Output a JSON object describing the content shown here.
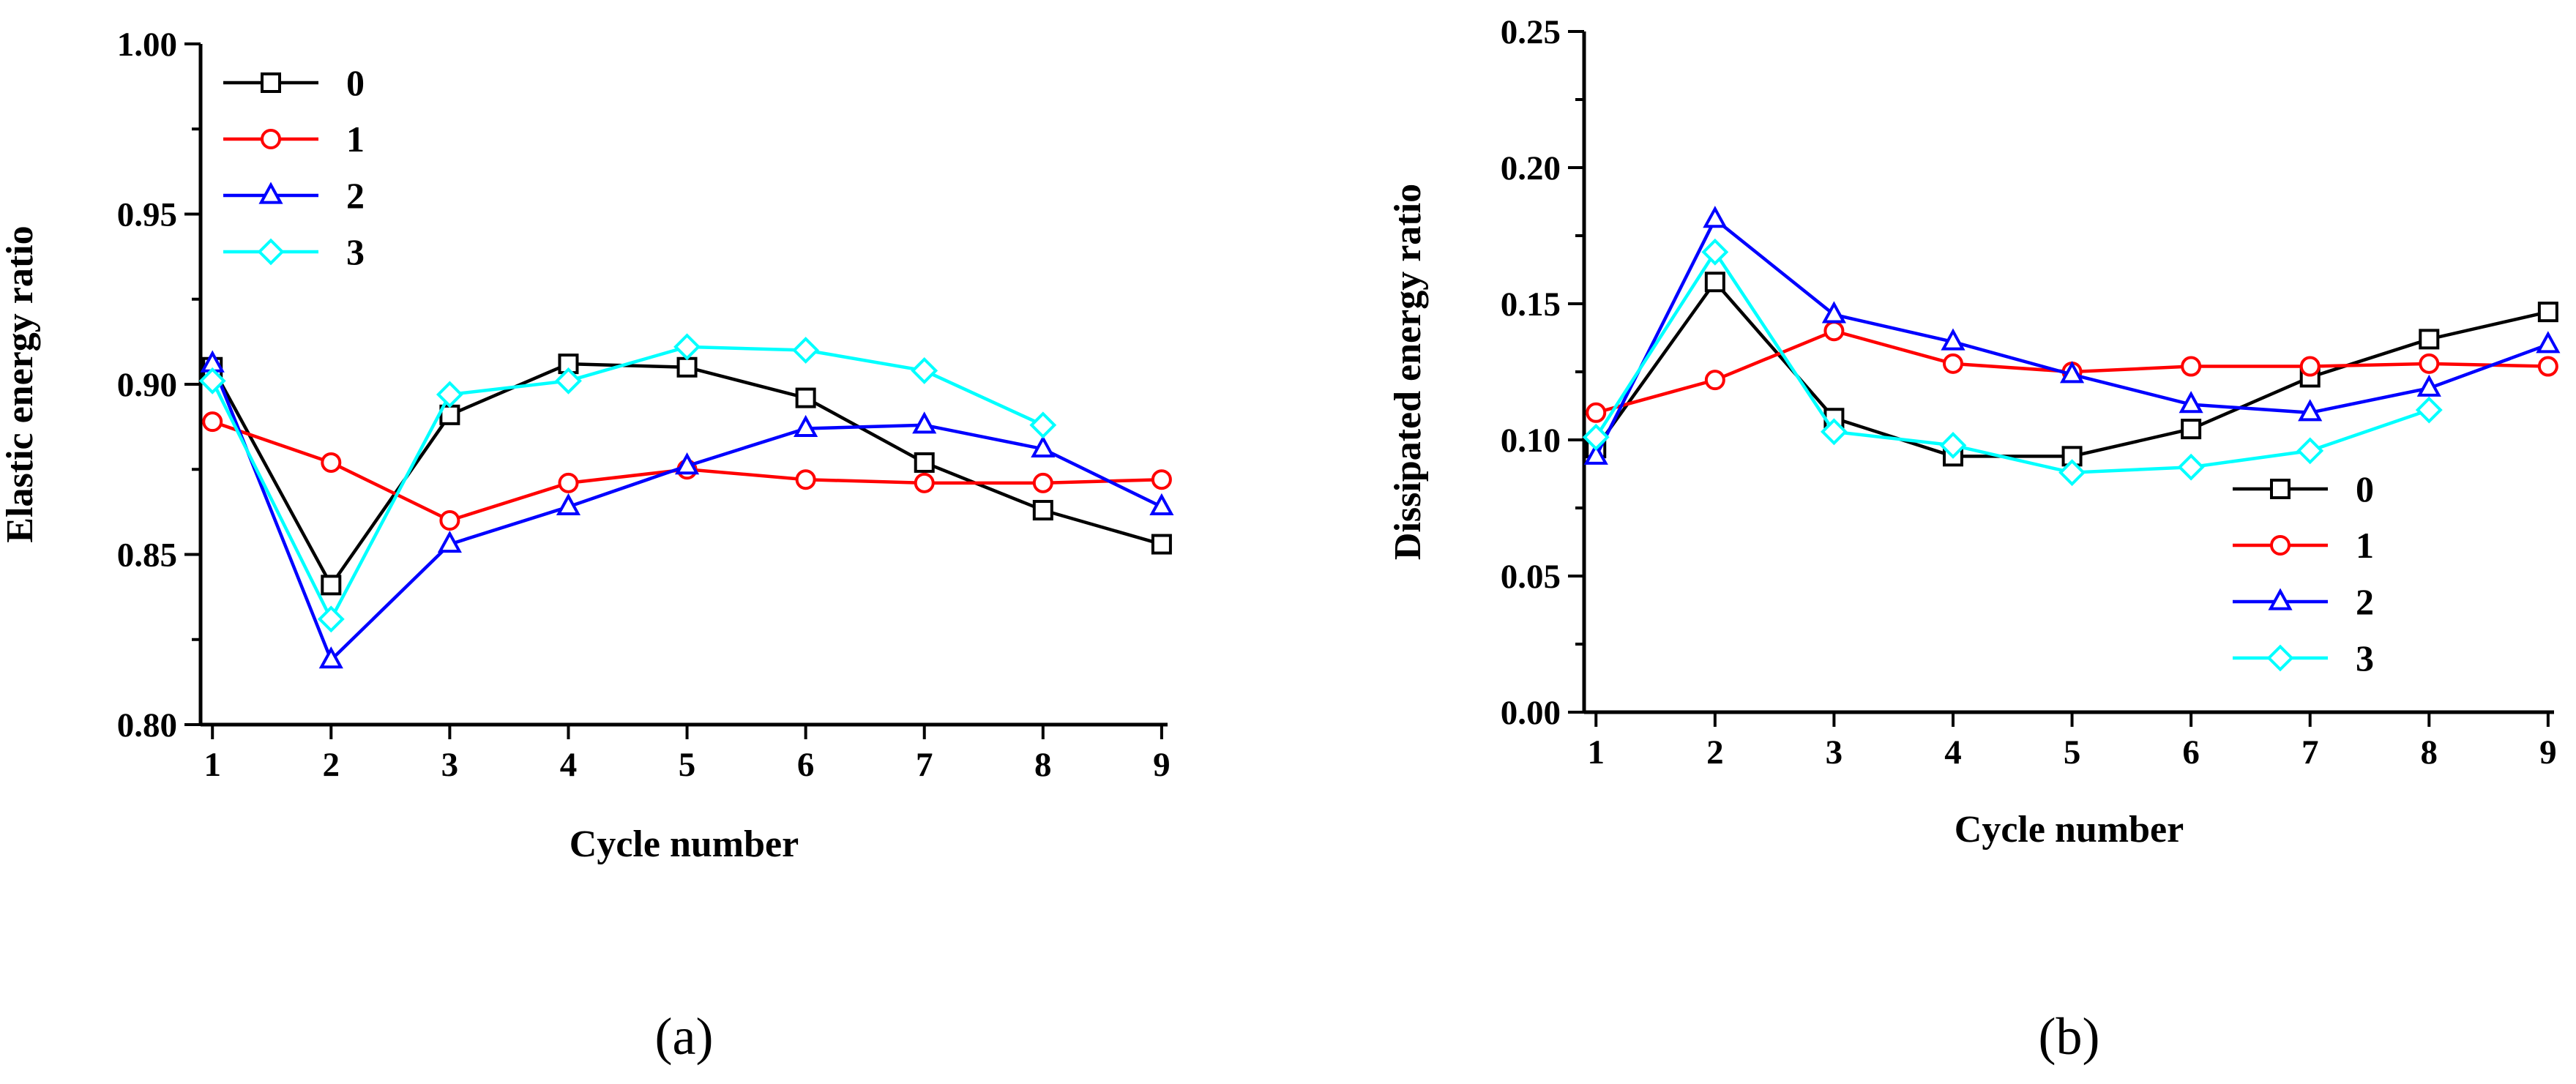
{
  "chart_data": [
    {
      "type": "line",
      "panel_label": "(a)",
      "xlabel": "Cycle number",
      "ylabel": "Elastic energy ratio",
      "x": [
        1,
        2,
        3,
        4,
        5,
        6,
        7,
        8,
        9
      ],
      "xlim": [
        0.9,
        9.05
      ],
      "ylim": [
        0.8,
        1.0
      ],
      "yticks": [
        "0.80",
        "0.85",
        "0.90",
        "0.95",
        "1.00"
      ],
      "xticks": [
        "1",
        "2",
        "3",
        "4",
        "5",
        "6",
        "7",
        "8",
        "9"
      ],
      "legend_position": "top-left",
      "series": [
        {
          "name": "0",
          "color": "#000000",
          "marker": "square",
          "values": [
            0.905,
            0.841,
            0.891,
            0.906,
            0.905,
            0.896,
            0.877,
            0.863,
            0.853
          ]
        },
        {
          "name": "1",
          "color": "#ff0000",
          "marker": "circle",
          "values": [
            0.889,
            0.877,
            0.86,
            0.871,
            0.875,
            0.872,
            0.871,
            0.871,
            0.872
          ]
        },
        {
          "name": "2",
          "color": "#0000ff",
          "marker": "triangle",
          "values": [
            0.906,
            0.819,
            0.853,
            0.864,
            0.876,
            0.887,
            0.888,
            0.881,
            0.864
          ]
        },
        {
          "name": "3",
          "color": "#00ffff",
          "marker": "diamond",
          "values": [
            0.901,
            0.831,
            0.897,
            0.901,
            0.911,
            0.91,
            0.904,
            0.888,
            null
          ]
        }
      ]
    },
    {
      "type": "line",
      "panel_label": "(b)",
      "xlabel": "Cycle number",
      "ylabel": "Dissipated energy ratio",
      "x": [
        1,
        2,
        3,
        4,
        5,
        6,
        7,
        8,
        9
      ],
      "xlim": [
        0.9,
        9.05
      ],
      "ylim": [
        0.0,
        0.25
      ],
      "yticks": [
        "0.00",
        "0.05",
        "0.10",
        "0.15",
        "0.20",
        "0.25"
      ],
      "xticks": [
        "1",
        "2",
        "3",
        "4",
        "5",
        "6",
        "7",
        "8",
        "9"
      ],
      "legend_position": "center-right",
      "series": [
        {
          "name": "0",
          "color": "#000000",
          "marker": "square",
          "values": [
            0.097,
            0.158,
            0.108,
            0.094,
            0.094,
            0.104,
            0.123,
            0.137,
            0.147
          ]
        },
        {
          "name": "1",
          "color": "#ff0000",
          "marker": "circle",
          "values": [
            0.11,
            0.122,
            0.14,
            0.128,
            0.125,
            0.127,
            0.127,
            0.128,
            0.127
          ]
        },
        {
          "name": "2",
          "color": "#0000ff",
          "marker": "triangle",
          "values": [
            0.094,
            0.181,
            0.146,
            0.136,
            0.124,
            0.113,
            0.11,
            0.119,
            0.135
          ]
        },
        {
          "name": "3",
          "color": "#00ffff",
          "marker": "diamond",
          "values": [
            0.101,
            0.169,
            0.103,
            0.098,
            0.088,
            0.09,
            0.096,
            0.111,
            null
          ]
        }
      ]
    }
  ]
}
